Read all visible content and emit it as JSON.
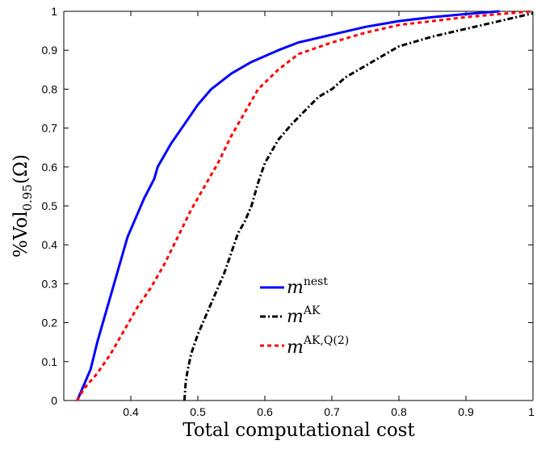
{
  "chart_data": {
    "type": "line",
    "title": "",
    "xlabel": "Total computational cost",
    "ylabel": {
      "prefix": "%Vol",
      "subscript": "0.95",
      "suffix": "(Ω)"
    },
    "xlim": [
      0.3,
      1.0
    ],
    "ylim": [
      0,
      1
    ],
    "xticks": [
      "0.4",
      "0.5",
      "0.6",
      "0.7",
      "0.8",
      "0.9",
      "1"
    ],
    "yticks": [
      "0",
      "0.1",
      "0.2",
      "0.3",
      "0.4",
      "0.5",
      "0.6",
      "0.7",
      "0.8",
      "0.9",
      "1"
    ],
    "grid": false,
    "legend_position": "lower-center",
    "series": [
      {
        "name": "m",
        "name_superscript": "nest",
        "color": "#0000ff",
        "line_style": "solid",
        "x": [
          0.32,
          0.325,
          0.33,
          0.34,
          0.35,
          0.36,
          0.37,
          0.375,
          0.385,
          0.395,
          0.405,
          0.42,
          0.435,
          0.44,
          0.46,
          0.48,
          0.5,
          0.52,
          0.55,
          0.58,
          0.62,
          0.65,
          0.7,
          0.75,
          0.8,
          0.85,
          0.9,
          0.95
        ],
        "y": [
          0,
          0.02,
          0.04,
          0.08,
          0.15,
          0.21,
          0.27,
          0.3,
          0.36,
          0.42,
          0.46,
          0.52,
          0.57,
          0.6,
          0.66,
          0.71,
          0.76,
          0.8,
          0.84,
          0.87,
          0.9,
          0.92,
          0.94,
          0.96,
          0.975,
          0.985,
          0.993,
          1.0
        ]
      },
      {
        "name": "m",
        "name_superscript": "AK",
        "color": "#000000",
        "line_style": "dashdot",
        "x": [
          0.48,
          0.482,
          0.485,
          0.49,
          0.5,
          0.51,
          0.52,
          0.53,
          0.54,
          0.55,
          0.56,
          0.57,
          0.58,
          0.59,
          0.6,
          0.62,
          0.64,
          0.66,
          0.68,
          0.7,
          0.72,
          0.75,
          0.78,
          0.8,
          0.85,
          0.9,
          0.95,
          1.0
        ],
        "y": [
          0,
          0.05,
          0.08,
          0.12,
          0.17,
          0.21,
          0.25,
          0.29,
          0.33,
          0.38,
          0.43,
          0.46,
          0.5,
          0.56,
          0.61,
          0.67,
          0.71,
          0.745,
          0.78,
          0.8,
          0.83,
          0.86,
          0.89,
          0.91,
          0.935,
          0.955,
          0.975,
          0.995
        ]
      },
      {
        "name": "m",
        "name_superscript": "AK,Q(2)",
        "color": "#ff0000",
        "line_style": "dashed",
        "x": [
          0.32,
          0.33,
          0.35,
          0.37,
          0.39,
          0.41,
          0.43,
          0.45,
          0.47,
          0.49,
          0.51,
          0.53,
          0.55,
          0.57,
          0.59,
          0.62,
          0.65,
          0.7,
          0.75,
          0.8,
          0.85,
          0.9,
          0.95,
          1.0
        ],
        "y": [
          0,
          0.03,
          0.07,
          0.12,
          0.18,
          0.24,
          0.29,
          0.35,
          0.42,
          0.49,
          0.55,
          0.61,
          0.68,
          0.74,
          0.8,
          0.85,
          0.89,
          0.92,
          0.945,
          0.965,
          0.975,
          0.985,
          0.993,
          1.0
        ]
      }
    ]
  }
}
